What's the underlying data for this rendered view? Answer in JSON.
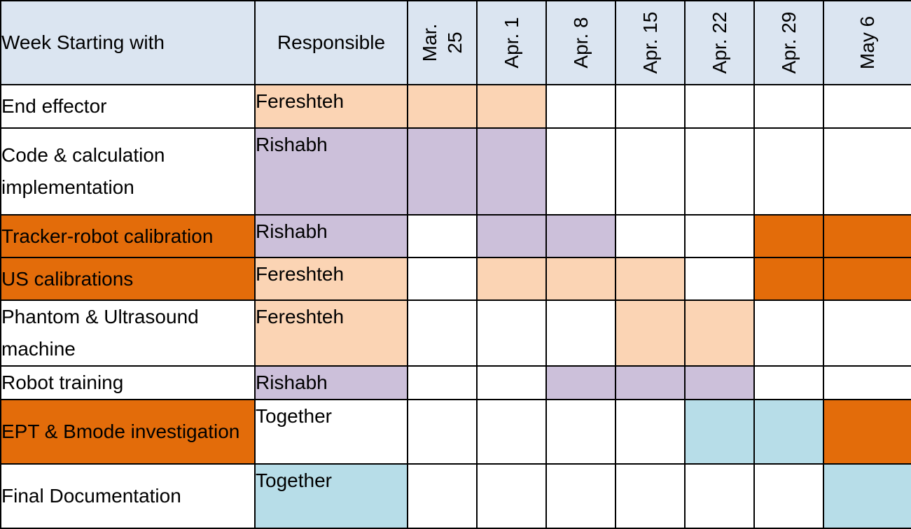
{
  "header": {
    "task_label": "Week Starting with",
    "responsible_label": "Responsible",
    "weeks": [
      "Mar.\n25",
      "Apr. 1",
      "Apr. 8",
      "Apr. 15",
      "Apr. 22",
      "Apr. 29",
      "May 6"
    ]
  },
  "colors": {
    "header": "#dbe5f1",
    "peach": "#fbd4b4",
    "lavender": "#ccc0da",
    "orange": "#e36c0a",
    "lightblue": "#b7dde8",
    "white": "#ffffff"
  },
  "rows": [
    {
      "task": "End effector",
      "task_color": "white",
      "responsible": "Fereshteh",
      "resp_color": "peach",
      "cells": [
        "peach",
        "peach",
        "white",
        "white",
        "white",
        "white",
        "white"
      ]
    },
    {
      "task": "Code & calculation implementation",
      "task_color": "white",
      "responsible": "Rishabh",
      "resp_color": "lavender",
      "cells": [
        "lavender",
        "lavender",
        "white",
        "white",
        "white",
        "white",
        "white"
      ]
    },
    {
      "task": "Tracker-robot calibration",
      "task_color": "orange",
      "responsible": "Rishabh",
      "resp_color": "lavender",
      "cells": [
        "white",
        "lavender",
        "lavender",
        "white",
        "white",
        "orange",
        "orange"
      ]
    },
    {
      "task": "US calibrations",
      "task_color": "orange",
      "responsible": "Fereshteh",
      "resp_color": "peach",
      "cells": [
        "white",
        "peach",
        "peach",
        "peach",
        "white",
        "orange",
        "orange"
      ]
    },
    {
      "task": "Phantom & Ultrasound machine",
      "task_color": "white",
      "responsible": "Fereshteh",
      "resp_color": "peach",
      "cells": [
        "white",
        "white",
        "white",
        "peach",
        "peach",
        "white",
        "white"
      ]
    },
    {
      "task": "Robot training",
      "task_color": "white",
      "responsible": "Rishabh",
      "resp_color": "lavender",
      "cells": [
        "white",
        "white",
        "lavender",
        "lavender",
        "lavender",
        "white",
        "white"
      ]
    },
    {
      "task": "EPT & Bmode investigation",
      "task_color": "orange",
      "responsible": "Together",
      "resp_color": "white",
      "cells": [
        "white",
        "white",
        "white",
        "white",
        "lightblue",
        "lightblue",
        "orange"
      ]
    },
    {
      "task": "Final Documentation",
      "task_color": "white",
      "responsible": "Together",
      "resp_color": "lightblue",
      "cells": [
        "white",
        "white",
        "white",
        "white",
        "white",
        "white",
        "lightblue"
      ]
    }
  ]
}
